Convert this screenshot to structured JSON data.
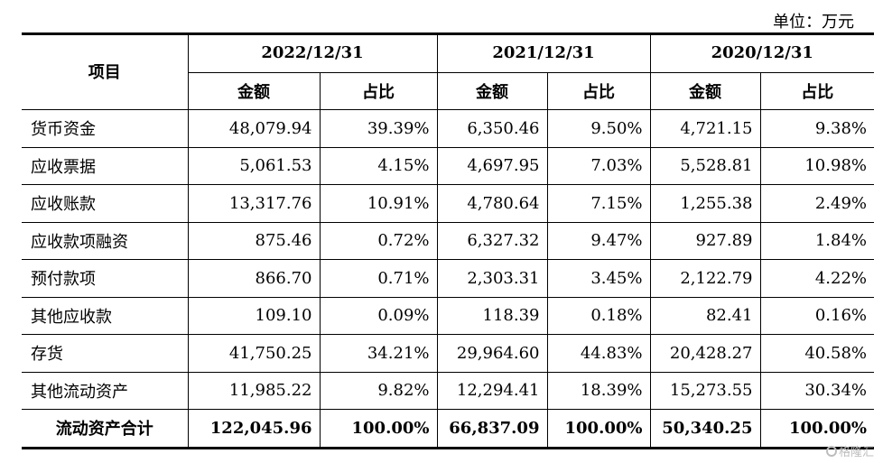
{
  "unit_label": "单位：万元",
  "table": {
    "item_header": "项目",
    "years": [
      {
        "label": "2022/12/31",
        "amount_header": "金额",
        "ratio_header": "占比"
      },
      {
        "label": "2021/12/31",
        "amount_header": "金额",
        "ratio_header": "占比"
      },
      {
        "label": "2020/12/31",
        "amount_header": "金额",
        "ratio_header": "占比"
      }
    ],
    "rows": [
      {
        "name": "货币资金",
        "cells": [
          "48,079.94",
          "39.39%",
          "6,350.46",
          "9.50%",
          "4,721.15",
          "9.38%"
        ]
      },
      {
        "name": "应收票据",
        "cells": [
          "5,061.53",
          "4.15%",
          "4,697.95",
          "7.03%",
          "5,528.81",
          "10.98%"
        ]
      },
      {
        "name": "应收账款",
        "cells": [
          "13,317.76",
          "10.91%",
          "4,780.64",
          "7.15%",
          "1,255.38",
          "2.49%"
        ]
      },
      {
        "name": "应收款项融资",
        "cells": [
          "875.46",
          "0.72%",
          "6,327.32",
          "9.47%",
          "927.89",
          "1.84%"
        ]
      },
      {
        "name": "预付款项",
        "cells": [
          "866.70",
          "0.71%",
          "2,303.31",
          "3.45%",
          "2,122.79",
          "4.22%"
        ]
      },
      {
        "name": "其他应收款",
        "cells": [
          "109.10",
          "0.09%",
          "118.39",
          "0.18%",
          "82.41",
          "0.16%"
        ]
      },
      {
        "name": "存货",
        "cells": [
          "41,750.25",
          "34.21%",
          "29,964.60",
          "44.83%",
          "20,428.27",
          "40.58%"
        ]
      },
      {
        "name": "其他流动资产",
        "cells": [
          "11,985.22",
          "9.82%",
          "12,294.41",
          "18.39%",
          "15,273.55",
          "30.34%"
        ]
      }
    ],
    "total": {
      "name": "流动资产合计",
      "cells": [
        "122,045.96",
        "100.00%",
        "66,837.09",
        "100.00%",
        "50,340.25",
        "100.00%"
      ]
    }
  },
  "watermark": "格隆汇"
}
